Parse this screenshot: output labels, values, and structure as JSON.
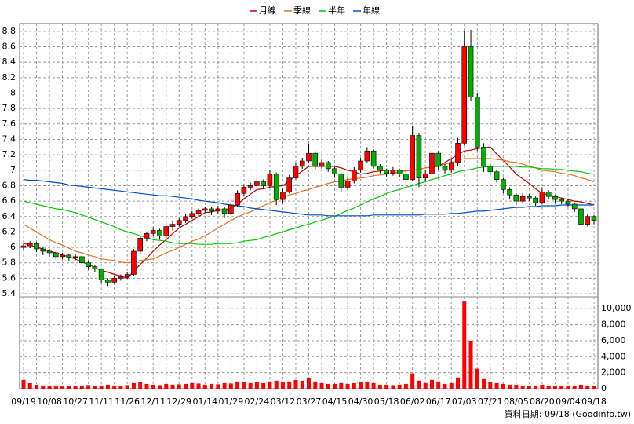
{
  "chart_data": {
    "type": "candlestick",
    "categories": [
      "09/19",
      null,
      null,
      null,
      "10/08",
      null,
      null,
      null,
      "10/27",
      null,
      null,
      null,
      "11/11",
      null,
      null,
      null,
      "11/26",
      null,
      null,
      null,
      "12/11",
      null,
      null,
      null,
      "12/29",
      null,
      null,
      null,
      "01/14",
      null,
      null,
      null,
      "01/29",
      null,
      null,
      null,
      "02/24",
      null,
      null,
      null,
      "03/12",
      null,
      null,
      null,
      "03/27",
      null,
      null,
      null,
      "04/15",
      null,
      null,
      null,
      "04/30",
      null,
      null,
      null,
      "05/18",
      null,
      null,
      null,
      "06/02",
      null,
      null,
      null,
      "06/17",
      null,
      null,
      null,
      "07/03",
      null,
      null,
      null,
      "07/21",
      null,
      null,
      null,
      "08/05",
      null,
      null,
      null,
      "08/20",
      null,
      null,
      null,
      "09/04",
      null,
      null,
      null,
      "09/18"
    ],
    "candles": [
      [
        6.0,
        6.06,
        5.96,
        6.02
      ],
      [
        6.02,
        6.08,
        5.99,
        6.05
      ],
      [
        6.05,
        6.07,
        5.94,
        5.98
      ],
      [
        5.98,
        6.0,
        5.9,
        5.95
      ],
      [
        5.95,
        5.98,
        5.88,
        5.93
      ],
      [
        5.93,
        5.95,
        5.84,
        5.88
      ],
      [
        5.88,
        5.93,
        5.85,
        5.9
      ],
      [
        5.9,
        5.92,
        5.83,
        5.87
      ],
      [
        5.87,
        5.92,
        5.84,
        5.88
      ],
      [
        5.88,
        5.9,
        5.76,
        5.8
      ],
      [
        5.8,
        5.83,
        5.71,
        5.75
      ],
      [
        5.75,
        5.77,
        5.68,
        5.72
      ],
      [
        5.72,
        5.73,
        5.54,
        5.58
      ],
      [
        5.58,
        5.6,
        5.5,
        5.55
      ],
      [
        5.55,
        5.63,
        5.53,
        5.6
      ],
      [
        5.6,
        5.65,
        5.57,
        5.62
      ],
      [
        5.62,
        5.68,
        5.6,
        5.65
      ],
      [
        5.65,
        5.98,
        5.63,
        5.95
      ],
      [
        5.95,
        6.15,
        5.92,
        6.12
      ],
      [
        6.12,
        6.2,
        6.08,
        6.18
      ],
      [
        6.18,
        6.26,
        6.14,
        6.22
      ],
      [
        6.22,
        6.24,
        6.1,
        6.15
      ],
      [
        6.15,
        6.3,
        6.12,
        6.27
      ],
      [
        6.27,
        6.34,
        6.22,
        6.3
      ],
      [
        6.3,
        6.38,
        6.27,
        6.35
      ],
      [
        6.35,
        6.43,
        6.32,
        6.4
      ],
      [
        6.4,
        6.47,
        6.37,
        6.44
      ],
      [
        6.44,
        6.5,
        6.41,
        6.48
      ],
      [
        6.48,
        6.53,
        6.45,
        6.5
      ],
      [
        6.5,
        6.52,
        6.42,
        6.47
      ],
      [
        6.47,
        6.54,
        6.44,
        6.5
      ],
      [
        6.5,
        6.52,
        6.38,
        6.44
      ],
      [
        6.44,
        6.59,
        6.42,
        6.55
      ],
      [
        6.55,
        6.74,
        6.52,
        6.7
      ],
      [
        6.7,
        6.82,
        6.66,
        6.78
      ],
      [
        6.78,
        6.84,
        6.74,
        6.8
      ],
      [
        6.8,
        6.9,
        6.77,
        6.85
      ],
      [
        6.85,
        6.88,
        6.76,
        6.8
      ],
      [
        6.8,
        7.0,
        6.78,
        6.95
      ],
      [
        6.95,
        6.97,
        6.55,
        6.62
      ],
      [
        6.62,
        6.76,
        6.58,
        6.72
      ],
      [
        6.72,
        6.94,
        6.7,
        6.9
      ],
      [
        6.9,
        7.1,
        6.88,
        7.05
      ],
      [
        7.05,
        7.16,
        7.02,
        7.12
      ],
      [
        7.12,
        7.34,
        7.1,
        7.22
      ],
      [
        7.22,
        7.25,
        7.0,
        7.05
      ],
      [
        7.05,
        7.14,
        7.02,
        7.1
      ],
      [
        7.1,
        7.12,
        6.98,
        7.02
      ],
      [
        7.02,
        7.04,
        6.9,
        6.95
      ],
      [
        6.95,
        6.97,
        6.72,
        6.78
      ],
      [
        6.78,
        6.9,
        6.75,
        6.86
      ],
      [
        6.86,
        7.04,
        6.83,
        7.0
      ],
      [
        7.0,
        7.16,
        6.97,
        7.12
      ],
      [
        7.12,
        7.3,
        7.1,
        7.25
      ],
      [
        7.25,
        7.27,
        7.02,
        7.05
      ],
      [
        7.05,
        7.08,
        6.96,
        7.0
      ],
      [
        7.0,
        7.02,
        6.92,
        6.96
      ],
      [
        6.96,
        7.04,
        6.93,
        7.0
      ],
      [
        7.0,
        7.02,
        6.91,
        6.95
      ],
      [
        6.95,
        6.98,
        6.82,
        6.88
      ],
      [
        6.88,
        7.58,
        6.86,
        7.45
      ],
      [
        7.45,
        7.48,
        6.78,
        6.9
      ],
      [
        6.9,
        7.0,
        6.86,
        6.95
      ],
      [
        6.95,
        7.28,
        6.92,
        7.22
      ],
      [
        7.22,
        7.25,
        7.0,
        7.05
      ],
      [
        7.05,
        7.08,
        6.96,
        7.0
      ],
      [
        7.0,
        7.14,
        6.97,
        7.1
      ],
      [
        7.1,
        7.42,
        7.06,
        7.35
      ],
      [
        7.35,
        8.8,
        7.32,
        8.6
      ],
      [
        8.6,
        8.82,
        7.9,
        7.95
      ],
      [
        7.95,
        8.0,
        7.25,
        7.3
      ],
      [
        7.3,
        7.35,
        6.98,
        7.05
      ],
      [
        7.05,
        7.08,
        6.94,
        6.98
      ],
      [
        6.98,
        7.0,
        6.84,
        6.88
      ],
      [
        6.88,
        6.9,
        6.7,
        6.75
      ],
      [
        6.75,
        6.78,
        6.63,
        6.68
      ],
      [
        6.68,
        6.7,
        6.55,
        6.6
      ],
      [
        6.6,
        6.7,
        6.57,
        6.66
      ],
      [
        6.66,
        6.69,
        6.6,
        6.64
      ],
      [
        6.64,
        6.66,
        6.54,
        6.58
      ],
      [
        6.58,
        6.78,
        6.56,
        6.72
      ],
      [
        6.72,
        6.74,
        6.62,
        6.66
      ],
      [
        6.66,
        6.68,
        6.58,
        6.62
      ],
      [
        6.62,
        6.64,
        6.56,
        6.6
      ],
      [
        6.6,
        6.62,
        6.52,
        6.56
      ],
      [
        6.56,
        6.58,
        6.46,
        6.5
      ],
      [
        6.5,
        6.52,
        6.25,
        6.3
      ],
      [
        6.3,
        6.43,
        6.27,
        6.4
      ],
      [
        6.4,
        6.42,
        6.3,
        6.35
      ]
    ],
    "up_color": "#ff0000",
    "down_color": "#00b000",
    "volume": {
      "color": "#ff0000",
      "values": [
        1100,
        700,
        500,
        400,
        350,
        400,
        300,
        350,
        300,
        400,
        450,
        350,
        400,
        500,
        400,
        350,
        450,
        700,
        800,
        600,
        500,
        450,
        600,
        500,
        550,
        600,
        700,
        650,
        500,
        600,
        550,
        700,
        650,
        900,
        800,
        700,
        800,
        700,
        900,
        1000,
        800,
        900,
        1100,
        1000,
        1300,
        900,
        700,
        600,
        600,
        700,
        600,
        700,
        800,
        900,
        700,
        500,
        500,
        450,
        500,
        600,
        1900,
        1000,
        700,
        1100,
        900,
        600,
        700,
        1400,
        11000,
        6000,
        2500,
        1200,
        800,
        700,
        600,
        500,
        500,
        400,
        350,
        400,
        500,
        400,
        350,
        300,
        400,
        350,
        500,
        400,
        350
      ]
    },
    "series": [
      {
        "name": "月線",
        "color": "#c00000",
        "values": [
          6.05,
          6.03,
          6.0,
          5.98,
          5.95,
          5.93,
          5.9,
          5.88,
          5.85,
          5.81,
          5.78,
          5.74,
          5.7,
          5.68,
          5.65,
          5.63,
          5.6,
          5.69,
          5.78,
          5.86,
          5.95,
          6.03,
          6.1,
          6.18,
          6.25,
          6.3,
          6.35,
          6.4,
          6.45,
          6.46,
          6.48,
          6.49,
          6.5,
          6.56,
          6.63,
          6.69,
          6.75,
          6.76,
          6.78,
          6.79,
          6.8,
          6.86,
          6.93,
          6.99,
          7.05,
          7.05,
          7.05,
          7.05,
          7.05,
          7.03,
          7.0,
          6.98,
          6.95,
          6.96,
          6.98,
          6.99,
          7.0,
          7.0,
          7.0,
          7.0,
          7.0,
          7.01,
          7.03,
          7.04,
          7.05,
          7.1,
          7.15,
          7.2,
          7.25,
          7.26,
          7.28,
          7.29,
          7.3,
          7.21,
          7.13,
          7.04,
          6.95,
          6.89,
          6.83,
          6.76,
          6.7,
          6.68,
          6.66,
          6.64,
          6.62,
          6.6,
          6.59,
          6.57,
          6.55
        ]
      },
      {
        "name": "季線",
        "color": "#e87020",
        "values": [
          6.3,
          6.25,
          6.2,
          6.15,
          6.1,
          6.06,
          6.03,
          5.99,
          5.95,
          5.93,
          5.9,
          5.88,
          5.85,
          5.84,
          5.83,
          5.81,
          5.8,
          5.81,
          5.83,
          5.84,
          5.85,
          5.89,
          5.93,
          5.96,
          6.0,
          6.04,
          6.08,
          6.11,
          6.15,
          6.2,
          6.25,
          6.3,
          6.35,
          6.39,
          6.43,
          6.46,
          6.5,
          6.54,
          6.58,
          6.61,
          6.65,
          6.68,
          6.7,
          6.73,
          6.75,
          6.78,
          6.8,
          6.83,
          6.85,
          6.86,
          6.88,
          6.89,
          6.9,
          6.91,
          6.93,
          6.94,
          6.95,
          6.96,
          6.98,
          6.99,
          7.0,
          7.01,
          7.03,
          7.04,
          7.05,
          7.08,
          7.1,
          7.13,
          7.15,
          7.15,
          7.15,
          7.15,
          7.15,
          7.14,
          7.13,
          7.11,
          7.1,
          7.08,
          7.05,
          7.03,
          7.0,
          6.99,
          6.98,
          6.96,
          6.95,
          6.93,
          6.9,
          6.88,
          6.85
        ]
      },
      {
        "name": "半年",
        "color": "#00c800",
        "values": [
          6.6,
          6.58,
          6.56,
          6.54,
          6.52,
          6.5,
          6.49,
          6.47,
          6.45,
          6.42,
          6.39,
          6.36,
          6.33,
          6.3,
          6.27,
          6.23,
          6.2,
          6.18,
          6.15,
          6.13,
          6.1,
          6.09,
          6.08,
          6.06,
          6.05,
          6.05,
          6.05,
          6.04,
          6.04,
          6.04,
          6.05,
          6.05,
          6.05,
          6.06,
          6.08,
          6.09,
          6.1,
          6.13,
          6.15,
          6.18,
          6.2,
          6.23,
          6.25,
          6.28,
          6.3,
          6.33,
          6.35,
          6.38,
          6.4,
          6.44,
          6.48,
          6.51,
          6.55,
          6.59,
          6.63,
          6.66,
          6.7,
          6.73,
          6.75,
          6.78,
          6.8,
          6.83,
          6.85,
          6.88,
          6.9,
          6.93,
          6.95,
          6.98,
          7.0,
          7.01,
          7.03,
          7.04,
          7.05,
          7.05,
          7.05,
          7.05,
          7.05,
          7.04,
          7.04,
          7.03,
          7.02,
          7.02,
          7.01,
          7.01,
          7.0,
          6.99,
          6.98,
          6.96,
          6.95
        ]
      },
      {
        "name": "年線",
        "color": "#0050c8",
        "values": [
          6.88,
          6.87,
          6.87,
          6.86,
          6.85,
          6.84,
          6.83,
          6.81,
          6.8,
          6.79,
          6.78,
          6.77,
          6.76,
          6.75,
          6.74,
          6.73,
          6.72,
          6.71,
          6.7,
          6.69,
          6.68,
          6.67,
          6.67,
          6.66,
          6.65,
          6.64,
          6.63,
          6.61,
          6.6,
          6.59,
          6.58,
          6.56,
          6.55,
          6.54,
          6.53,
          6.51,
          6.5,
          6.49,
          6.48,
          6.47,
          6.46,
          6.45,
          6.44,
          6.43,
          6.42,
          6.42,
          6.42,
          6.41,
          6.41,
          6.41,
          6.41,
          6.41,
          6.41,
          6.41,
          6.42,
          6.42,
          6.42,
          6.42,
          6.42,
          6.42,
          6.42,
          6.42,
          6.43,
          6.43,
          6.43,
          6.43,
          6.44,
          6.44,
          6.45,
          6.46,
          6.47,
          6.47,
          6.48,
          6.49,
          6.5,
          6.51,
          6.52,
          6.52,
          6.53,
          6.53,
          6.54,
          6.54,
          6.54,
          6.55,
          6.55,
          6.55,
          6.55,
          6.55,
          6.55
        ]
      }
    ],
    "ylim": [
      5.36,
      8.9
    ],
    "yticks": [
      5.4,
      5.6,
      5.8,
      6,
      6.2,
      6.4,
      6.6,
      6.8,
      7,
      7.2,
      7.4,
      7.6,
      7.8,
      8,
      8.2,
      8.4,
      8.6,
      8.8
    ],
    "y2lim": [
      0,
      11300
    ],
    "y2ticks": [
      0,
      {
        "value": 2000,
        "label": "2,000"
      },
      {
        "value": 4000,
        "label": "4,000"
      },
      {
        "value": 6000,
        "label": "6,000"
      },
      {
        "value": 8000,
        "label": "8,000"
      },
      {
        "value": 10000,
        "label": "10,000"
      }
    ],
    "grid": true,
    "footer": "資料日期: 09/18 (Goodinfo.tw)"
  }
}
